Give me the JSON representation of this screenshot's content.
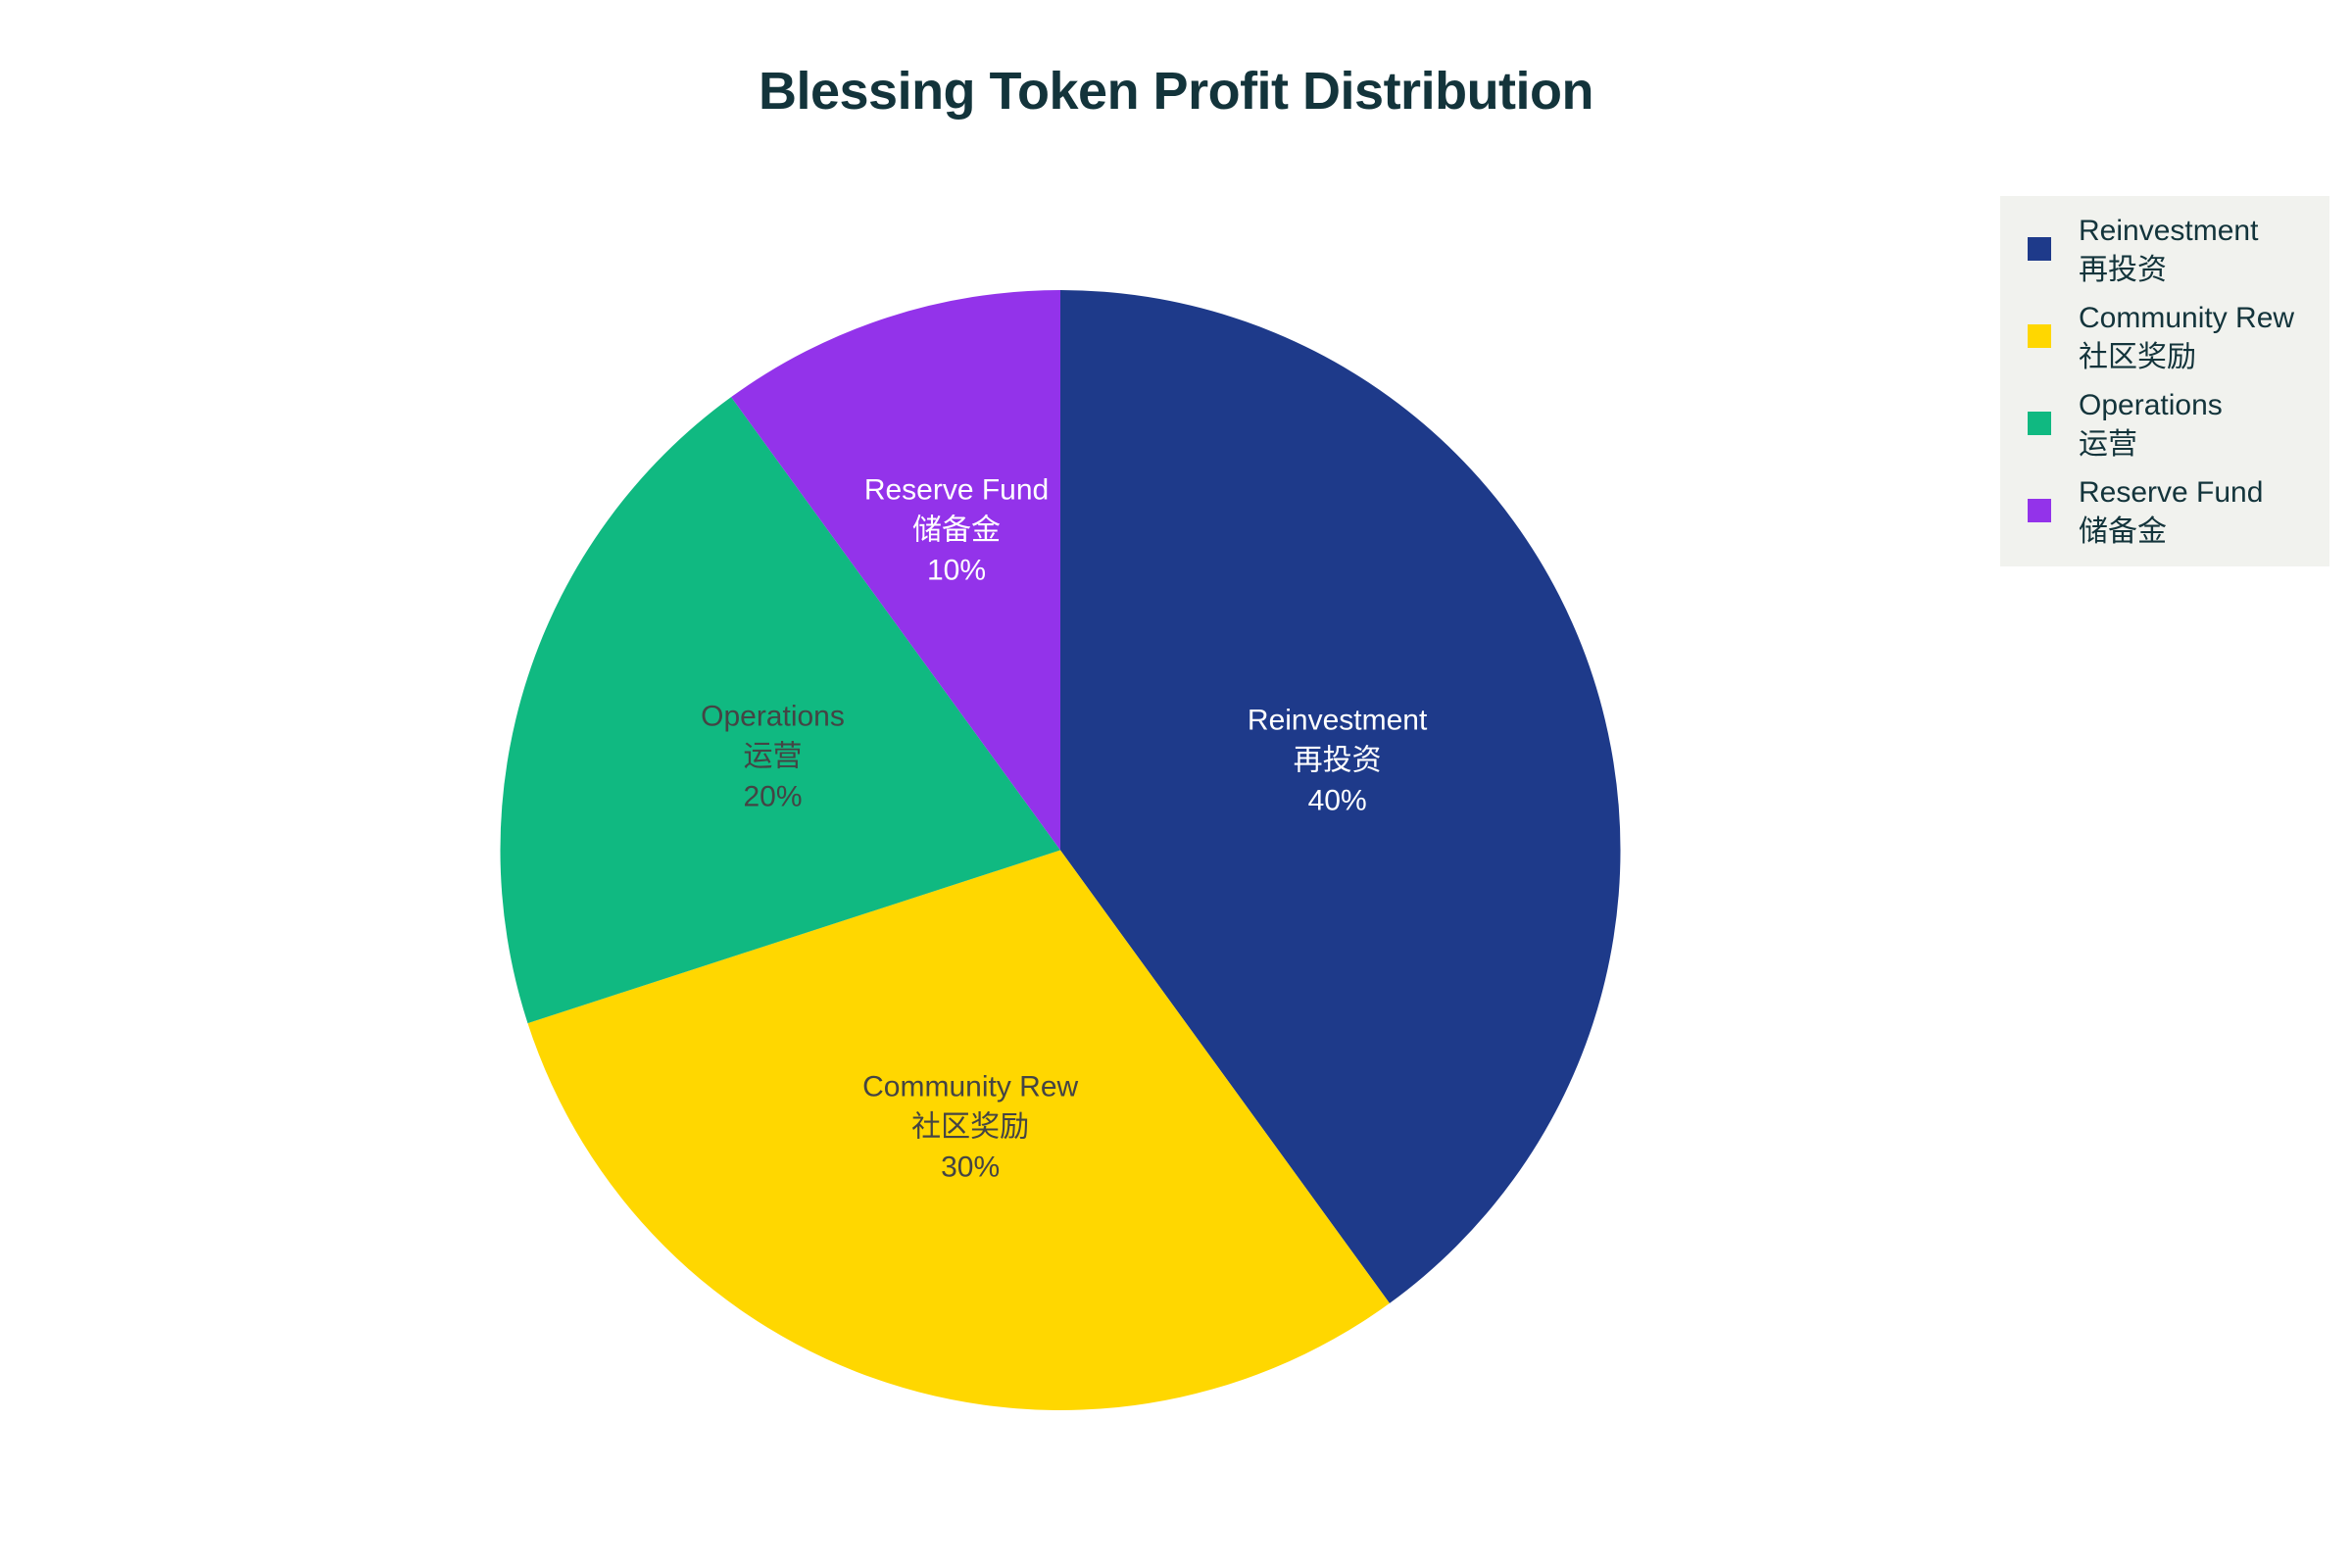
{
  "chart_data": {
    "type": "pie",
    "title": "Blessing Token Profit Distribution",
    "categories": [
      "Reinvestment\n再投资",
      "Community Rew\n社区奖励",
      "Operations\n运营",
      "Reserve Fund\n储备金"
    ],
    "values": [
      40,
      30,
      20,
      10
    ],
    "unit": "%",
    "colors": [
      "#1E3A8A",
      "#FFD700",
      "#10B981",
      "#9333EA"
    ],
    "start_angle": "top (12 o'clock), clockwise",
    "legend_position": "top-right"
  },
  "title": "Blessing Token Profit Distribution",
  "slices": [
    {
      "name_en": "Reinvestment",
      "name_zh": "再投资",
      "percent": "40%",
      "color": "#1E3A8A",
      "text_color": "#FFFFFF"
    },
    {
      "name_en": "Community Rew",
      "name_zh": "社区奖励",
      "percent": "30%",
      "color": "#FFD700",
      "text_color": "#444444"
    },
    {
      "name_en": "Operations",
      "name_zh": "运营",
      "percent": "20%",
      "color": "#10B981",
      "text_color": "#444444"
    },
    {
      "name_en": "Reserve Fund",
      "name_zh": "储备金",
      "percent": "10%",
      "color": "#9333EA",
      "text_color": "#FFFFFF"
    }
  ],
  "legend": [
    {
      "name_en": "Reinvestment",
      "name_zh": "再投资",
      "color": "#1E3A8A"
    },
    {
      "name_en": "Community Rew",
      "name_zh": "社区奖励",
      "color": "#FFD700"
    },
    {
      "name_en": "Operations",
      "name_zh": "运营",
      "color": "#10B981"
    },
    {
      "name_en": "Reserve Fund",
      "name_zh": "储备金",
      "color": "#9333EA"
    }
  ]
}
